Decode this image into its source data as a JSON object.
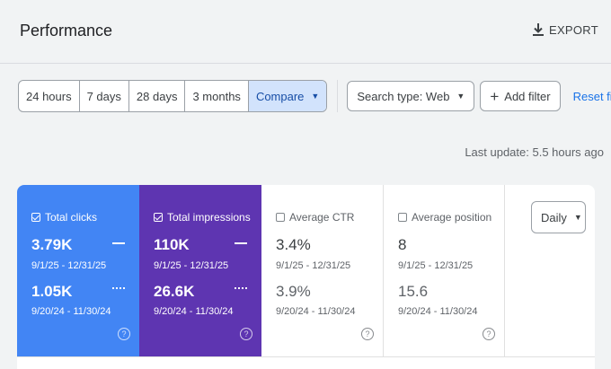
{
  "header": {
    "title": "Performance",
    "export_label": "EXPORT"
  },
  "filters": {
    "ranges": [
      {
        "label": "24 hours",
        "active": false
      },
      {
        "label": "7 days",
        "active": false
      },
      {
        "label": "28 days",
        "active": false
      },
      {
        "label": "3 months",
        "active": false
      },
      {
        "label": "Compare",
        "active": true
      }
    ],
    "search_type": "Search type: Web",
    "add_filter": "Add filter",
    "reset": "Reset filters"
  },
  "last_update": "Last update: 5.5 hours ago",
  "metrics": [
    {
      "label": "Total clicks",
      "checked": true,
      "value1": "3.79K",
      "range1": "9/1/25 - 12/31/25",
      "value2": "1.05K",
      "range2": "9/20/24 - 11/30/24",
      "color": "#4285f4"
    },
    {
      "label": "Total impressions",
      "checked": true,
      "value1": "110K",
      "range1": "9/1/25 - 12/31/25",
      "value2": "26.6K",
      "range2": "9/20/24 - 11/30/24",
      "color": "#5e35b1"
    },
    {
      "label": "Average CTR",
      "checked": false,
      "value1": "3.4%",
      "range1": "9/1/25 - 12/31/25",
      "value2": "3.9%",
      "range2": "9/20/24 - 11/30/24"
    },
    {
      "label": "Average position",
      "checked": false,
      "value1": "8",
      "range1": "9/1/25 - 12/31/25",
      "value2": "15.6",
      "range2": "9/20/24 - 11/30/24"
    }
  ],
  "granularity": {
    "selected": "Daily"
  },
  "icons": {
    "export": "download-icon",
    "help": "help-circle-icon",
    "add": "plus-icon"
  }
}
